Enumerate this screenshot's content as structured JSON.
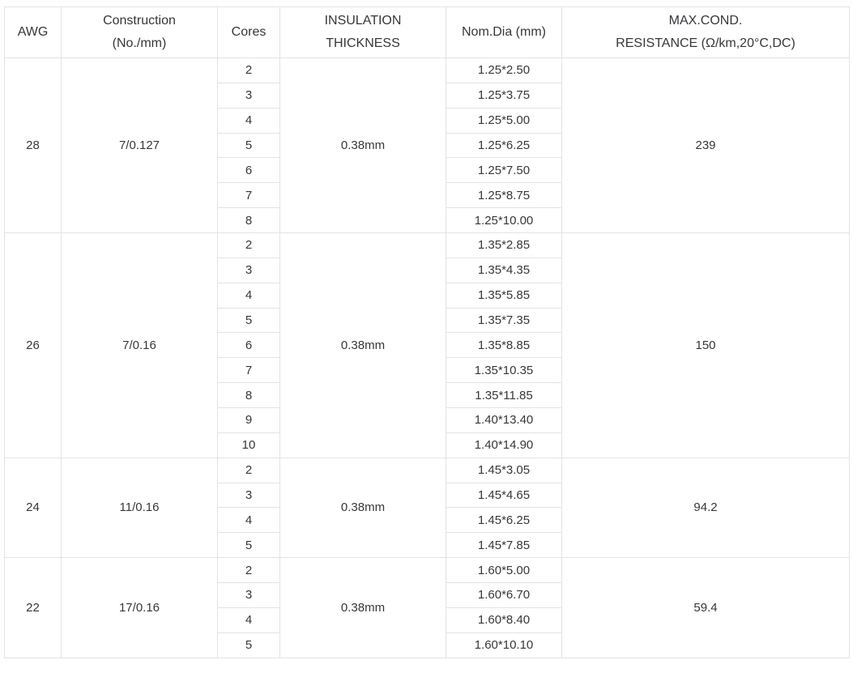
{
  "colors": {
    "background": "#ffffff",
    "text": "#36373a",
    "border": "#e3e3e3"
  },
  "table": {
    "columns": [
      {
        "id": "awg",
        "lines": [
          "AWG"
        ]
      },
      {
        "id": "construction",
        "lines": [
          "Construction",
          "(No./mm)"
        ]
      },
      {
        "id": "cores",
        "lines": [
          "Cores"
        ]
      },
      {
        "id": "insulation",
        "lines": [
          "INSULATION",
          "THICKNESS"
        ]
      },
      {
        "id": "dia",
        "lines": [
          "Nom.Dia (mm)"
        ]
      },
      {
        "id": "resistance",
        "lines": [
          "MAX.COND.",
          "RESISTANCE (Ω/km,20°C,DC)"
        ]
      }
    ],
    "groups": [
      {
        "awg": "28",
        "construction": "7/0.127",
        "insulation": "0.38mm",
        "resistance": "239",
        "rows": [
          [
            "2",
            "1.25*2.50"
          ],
          [
            "3",
            "1.25*3.75"
          ],
          [
            "4",
            "1.25*5.00"
          ],
          [
            "5",
            "1.25*6.25"
          ],
          [
            "6",
            "1.25*7.50"
          ],
          [
            "7",
            "1.25*8.75"
          ],
          [
            "8",
            "1.25*10.00"
          ]
        ]
      },
      {
        "awg": "26",
        "construction": "7/0.16",
        "insulation": "0.38mm",
        "resistance": "150",
        "rows": [
          [
            "2",
            "1.35*2.85"
          ],
          [
            "3",
            "1.35*4.35"
          ],
          [
            "4",
            "1.35*5.85"
          ],
          [
            "5",
            "1.35*7.35"
          ],
          [
            "6",
            "1.35*8.85"
          ],
          [
            "7",
            "1.35*10.35"
          ],
          [
            "8",
            "1.35*11.85"
          ],
          [
            "9",
            "1.40*13.40"
          ],
          [
            "10",
            "1.40*14.90"
          ]
        ]
      },
      {
        "awg": "24",
        "construction": "11/0.16",
        "insulation": "0.38mm",
        "resistance": "94.2",
        "rows": [
          [
            "2",
            "1.45*3.05"
          ],
          [
            "3",
            "1.45*4.65"
          ],
          [
            "4",
            "1.45*6.25"
          ],
          [
            "5",
            "1.45*7.85"
          ]
        ]
      },
      {
        "awg": "22",
        "construction": "17/0.16",
        "insulation": "0.38mm",
        "resistance": "59.4",
        "rows": [
          [
            "2",
            "1.60*5.00"
          ],
          [
            "3",
            "1.60*6.70"
          ],
          [
            "4",
            "1.60*8.40"
          ],
          [
            "5",
            "1.60*10.10"
          ]
        ]
      }
    ]
  }
}
